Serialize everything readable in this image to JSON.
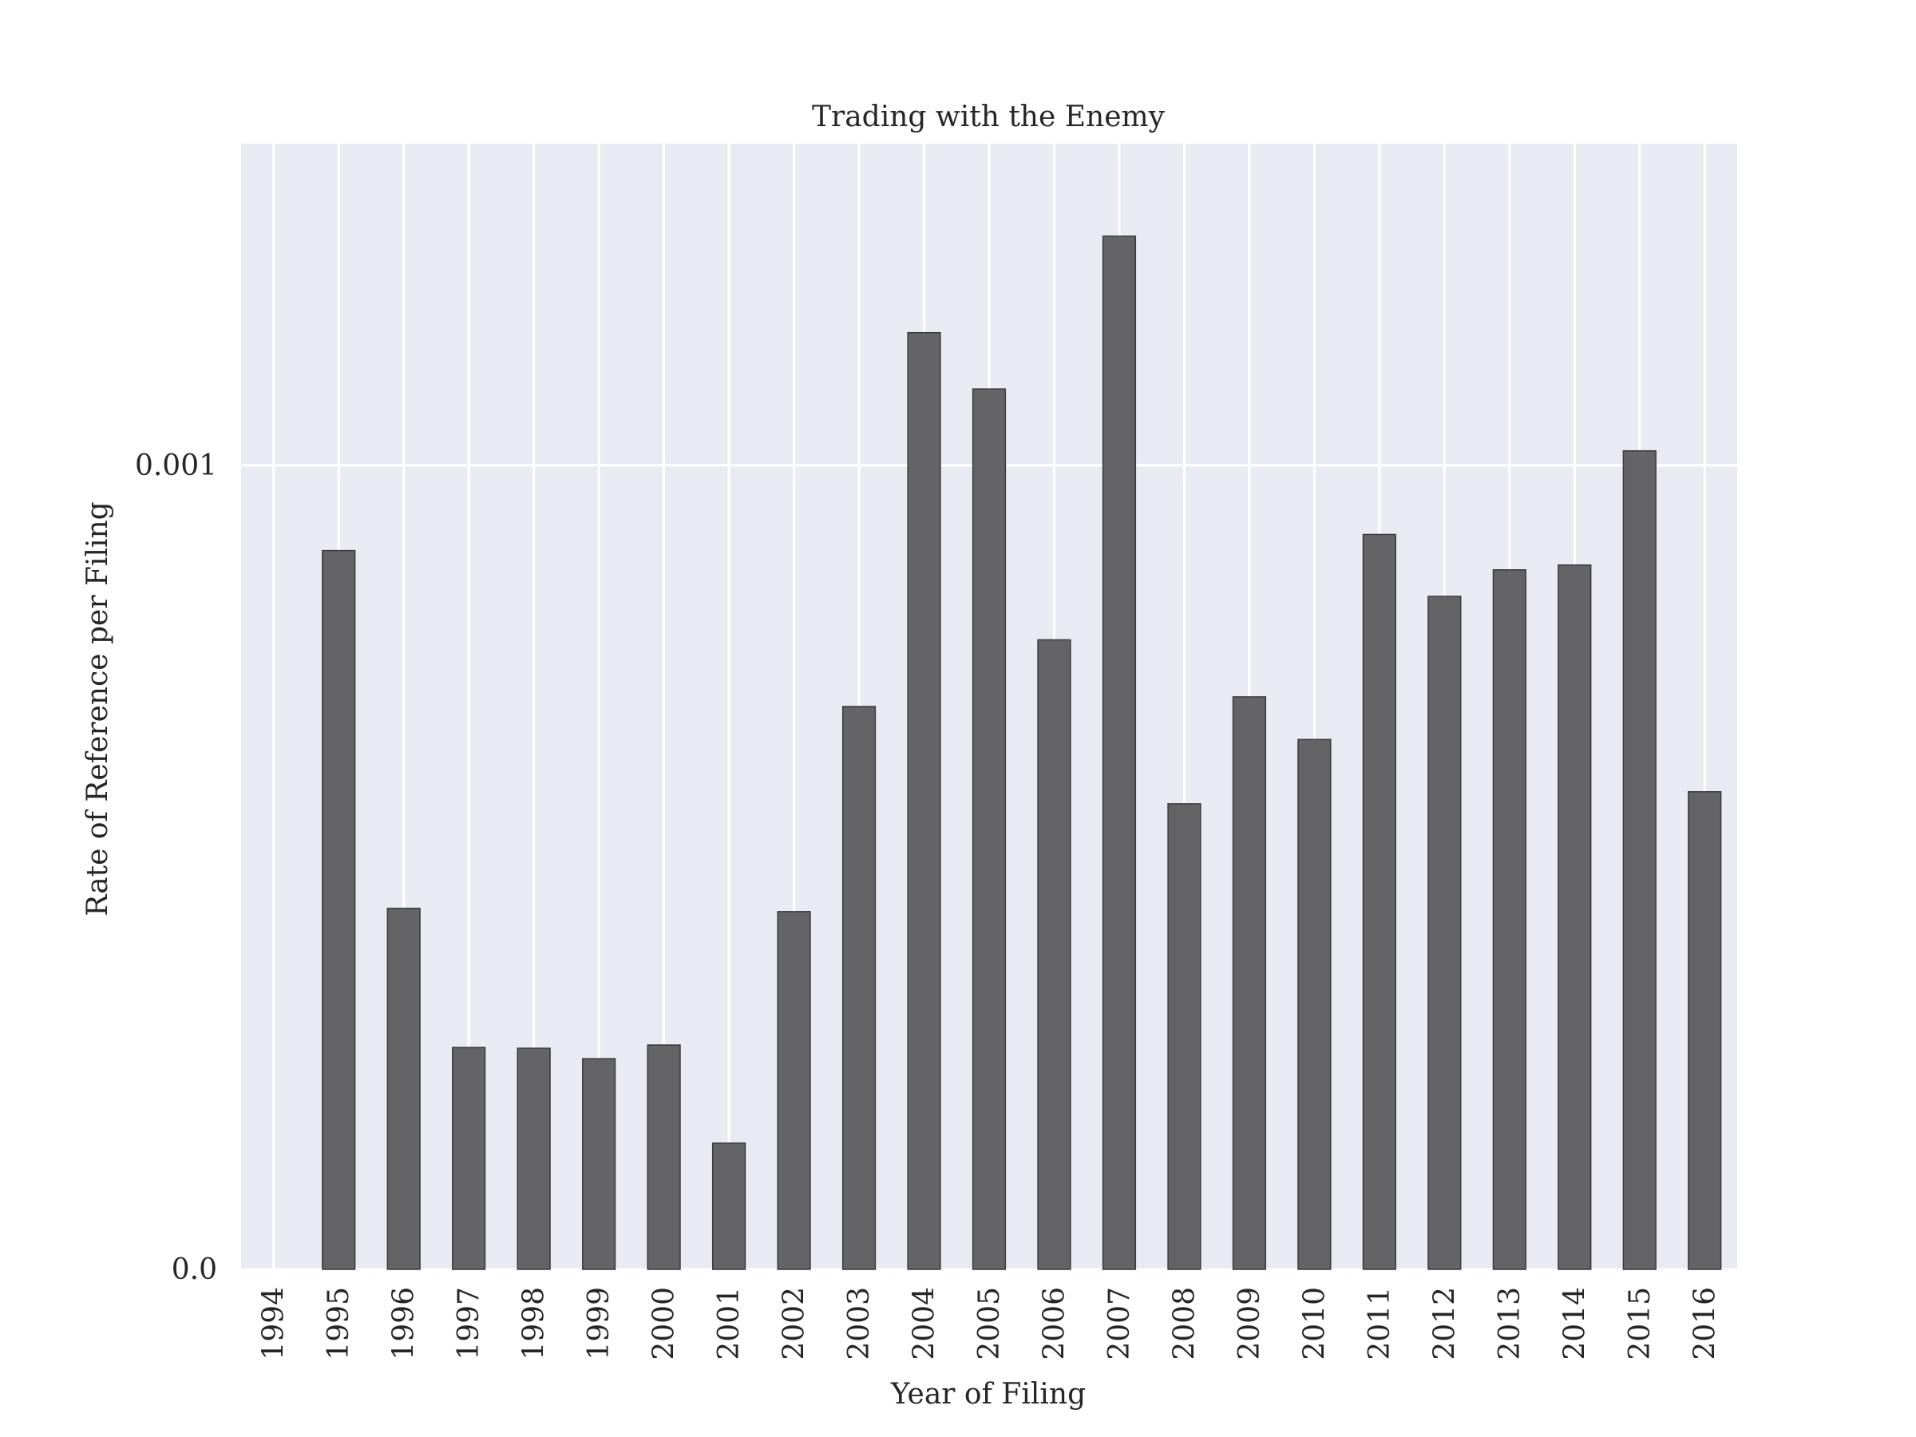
{
  "chart_data": {
    "type": "bar",
    "title": "Trading with the Enemy",
    "xlabel": "Year of Filing",
    "ylabel": "Rate of Reference per Filing",
    "categories": [
      "1994",
      "1995",
      "1996",
      "1997",
      "1998",
      "1999",
      "2000",
      "2001",
      "2002",
      "2003",
      "2004",
      "2005",
      "2006",
      "2007",
      "2008",
      "2009",
      "2010",
      "2011",
      "2012",
      "2013",
      "2014",
      "2015",
      "2016"
    ],
    "values": [
      0.0,
      0.000894,
      0.000449,
      0.000276,
      0.000275,
      0.000262,
      0.000279,
      0.000157,
      0.000445,
      0.0007,
      0.001165,
      0.001095,
      0.000783,
      0.001285,
      0.000579,
      0.000712,
      0.000659,
      0.000914,
      0.000837,
      0.00087,
      0.000876,
      0.001018,
      0.000594
    ],
    "yticks": [
      {
        "value": 0.0,
        "label": "0.0"
      },
      {
        "value": 0.001,
        "label": "0.001"
      }
    ],
    "ylim": [
      0.0,
      0.0014
    ],
    "grid": true,
    "colors": {
      "plot_background": "#eaeaf2",
      "grid": "#ffffff",
      "bar": "#646466",
      "bar_edge": "#3a3a3c",
      "text": "#262626"
    }
  }
}
